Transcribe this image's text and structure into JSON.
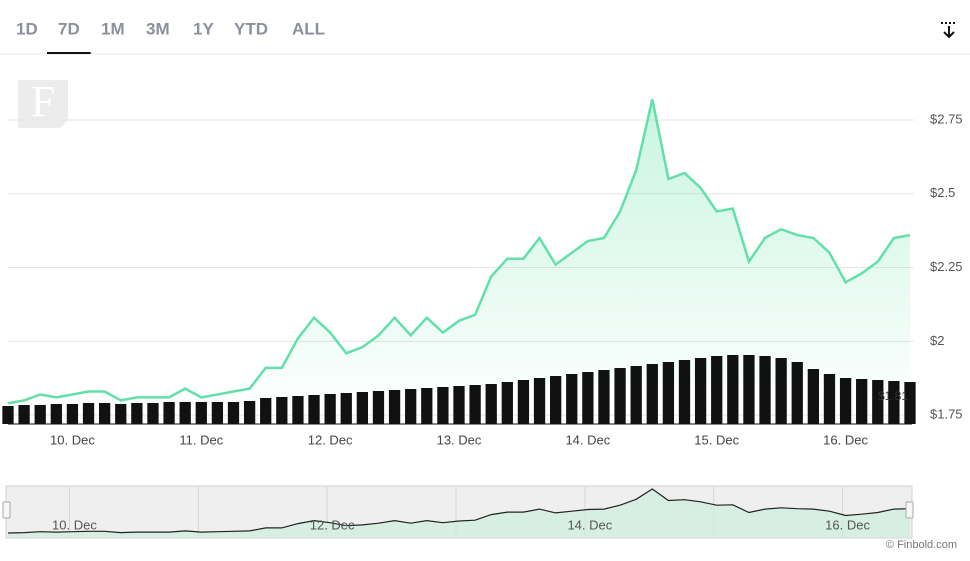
{
  "tabs": [
    "1D",
    "7D",
    "1M",
    "3M",
    "1Y",
    "YTD",
    "ALL"
  ],
  "selected_tab": 1,
  "logo": "F",
  "chart_data": {
    "type": "line",
    "categories": [
      null,
      null,
      null,
      null,
      "10. Dec",
      null,
      null,
      null,
      null,
      null,
      null,
      null,
      "11. Dec",
      null,
      null,
      null,
      null,
      null,
      null,
      null,
      "12. Dec",
      null,
      null,
      null,
      null,
      null,
      null,
      null,
      "13. Dec",
      null,
      null,
      null,
      null,
      null,
      null,
      null,
      "14. Dec",
      null,
      null,
      null,
      null,
      null,
      null,
      null,
      "15. Dec",
      null,
      null,
      null,
      null,
      null,
      null,
      null,
      "16. Dec",
      null,
      null,
      null,
      null
    ],
    "values": [
      1.79,
      1.8,
      1.82,
      1.81,
      1.82,
      1.83,
      1.83,
      1.8,
      1.81,
      1.81,
      1.81,
      1.84,
      1.81,
      1.82,
      1.83,
      1.84,
      1.91,
      1.91,
      2.01,
      2.08,
      2.03,
      1.96,
      1.98,
      2.02,
      2.08,
      2.02,
      2.08,
      2.03,
      2.07,
      2.09,
      2.22,
      2.28,
      2.28,
      2.35,
      2.26,
      2.3,
      2.34,
      2.35,
      2.44,
      2.58,
      2.82,
      2.55,
      2.57,
      2.52,
      2.44,
      2.45,
      2.27,
      2.35,
      2.38,
      2.36,
      2.35,
      2.3,
      2.2,
      2.23,
      2.27,
      2.35,
      2.36
    ],
    "color": "#63e0aa",
    "volume": [
      18,
      19,
      19,
      20,
      20,
      21,
      21,
      20,
      21,
      21,
      22,
      22,
      22,
      22,
      22,
      23,
      26,
      27,
      28,
      29,
      30,
      31,
      32,
      33,
      34,
      35,
      36,
      37,
      38,
      39,
      40,
      42,
      44,
      46,
      48,
      50,
      52,
      54,
      56,
      58,
      60,
      62,
      64,
      66,
      68,
      69,
      69,
      68,
      66,
      62,
      55,
      50,
      46,
      45,
      44,
      43,
      42
    ],
    "volume_color": "#111111",
    "ylim": [
      1.72,
      2.97
    ],
    "yticks": [
      {
        "value": 1.75,
        "label": "$1.75"
      },
      {
        "value": 2,
        "label": "$2"
      },
      {
        "value": 2.25,
        "label": "$2.25"
      },
      {
        "value": 2.5,
        "label": "$2.5"
      },
      {
        "value": 2.75,
        "label": "$2.75"
      }
    ],
    "grid": true,
    "annotation": "$1.81"
  },
  "navigator_labels": [
    "10. Dec",
    "12. Dec",
    "14. Dec",
    "16. Dec"
  ],
  "copyright": "© Finbold.com"
}
